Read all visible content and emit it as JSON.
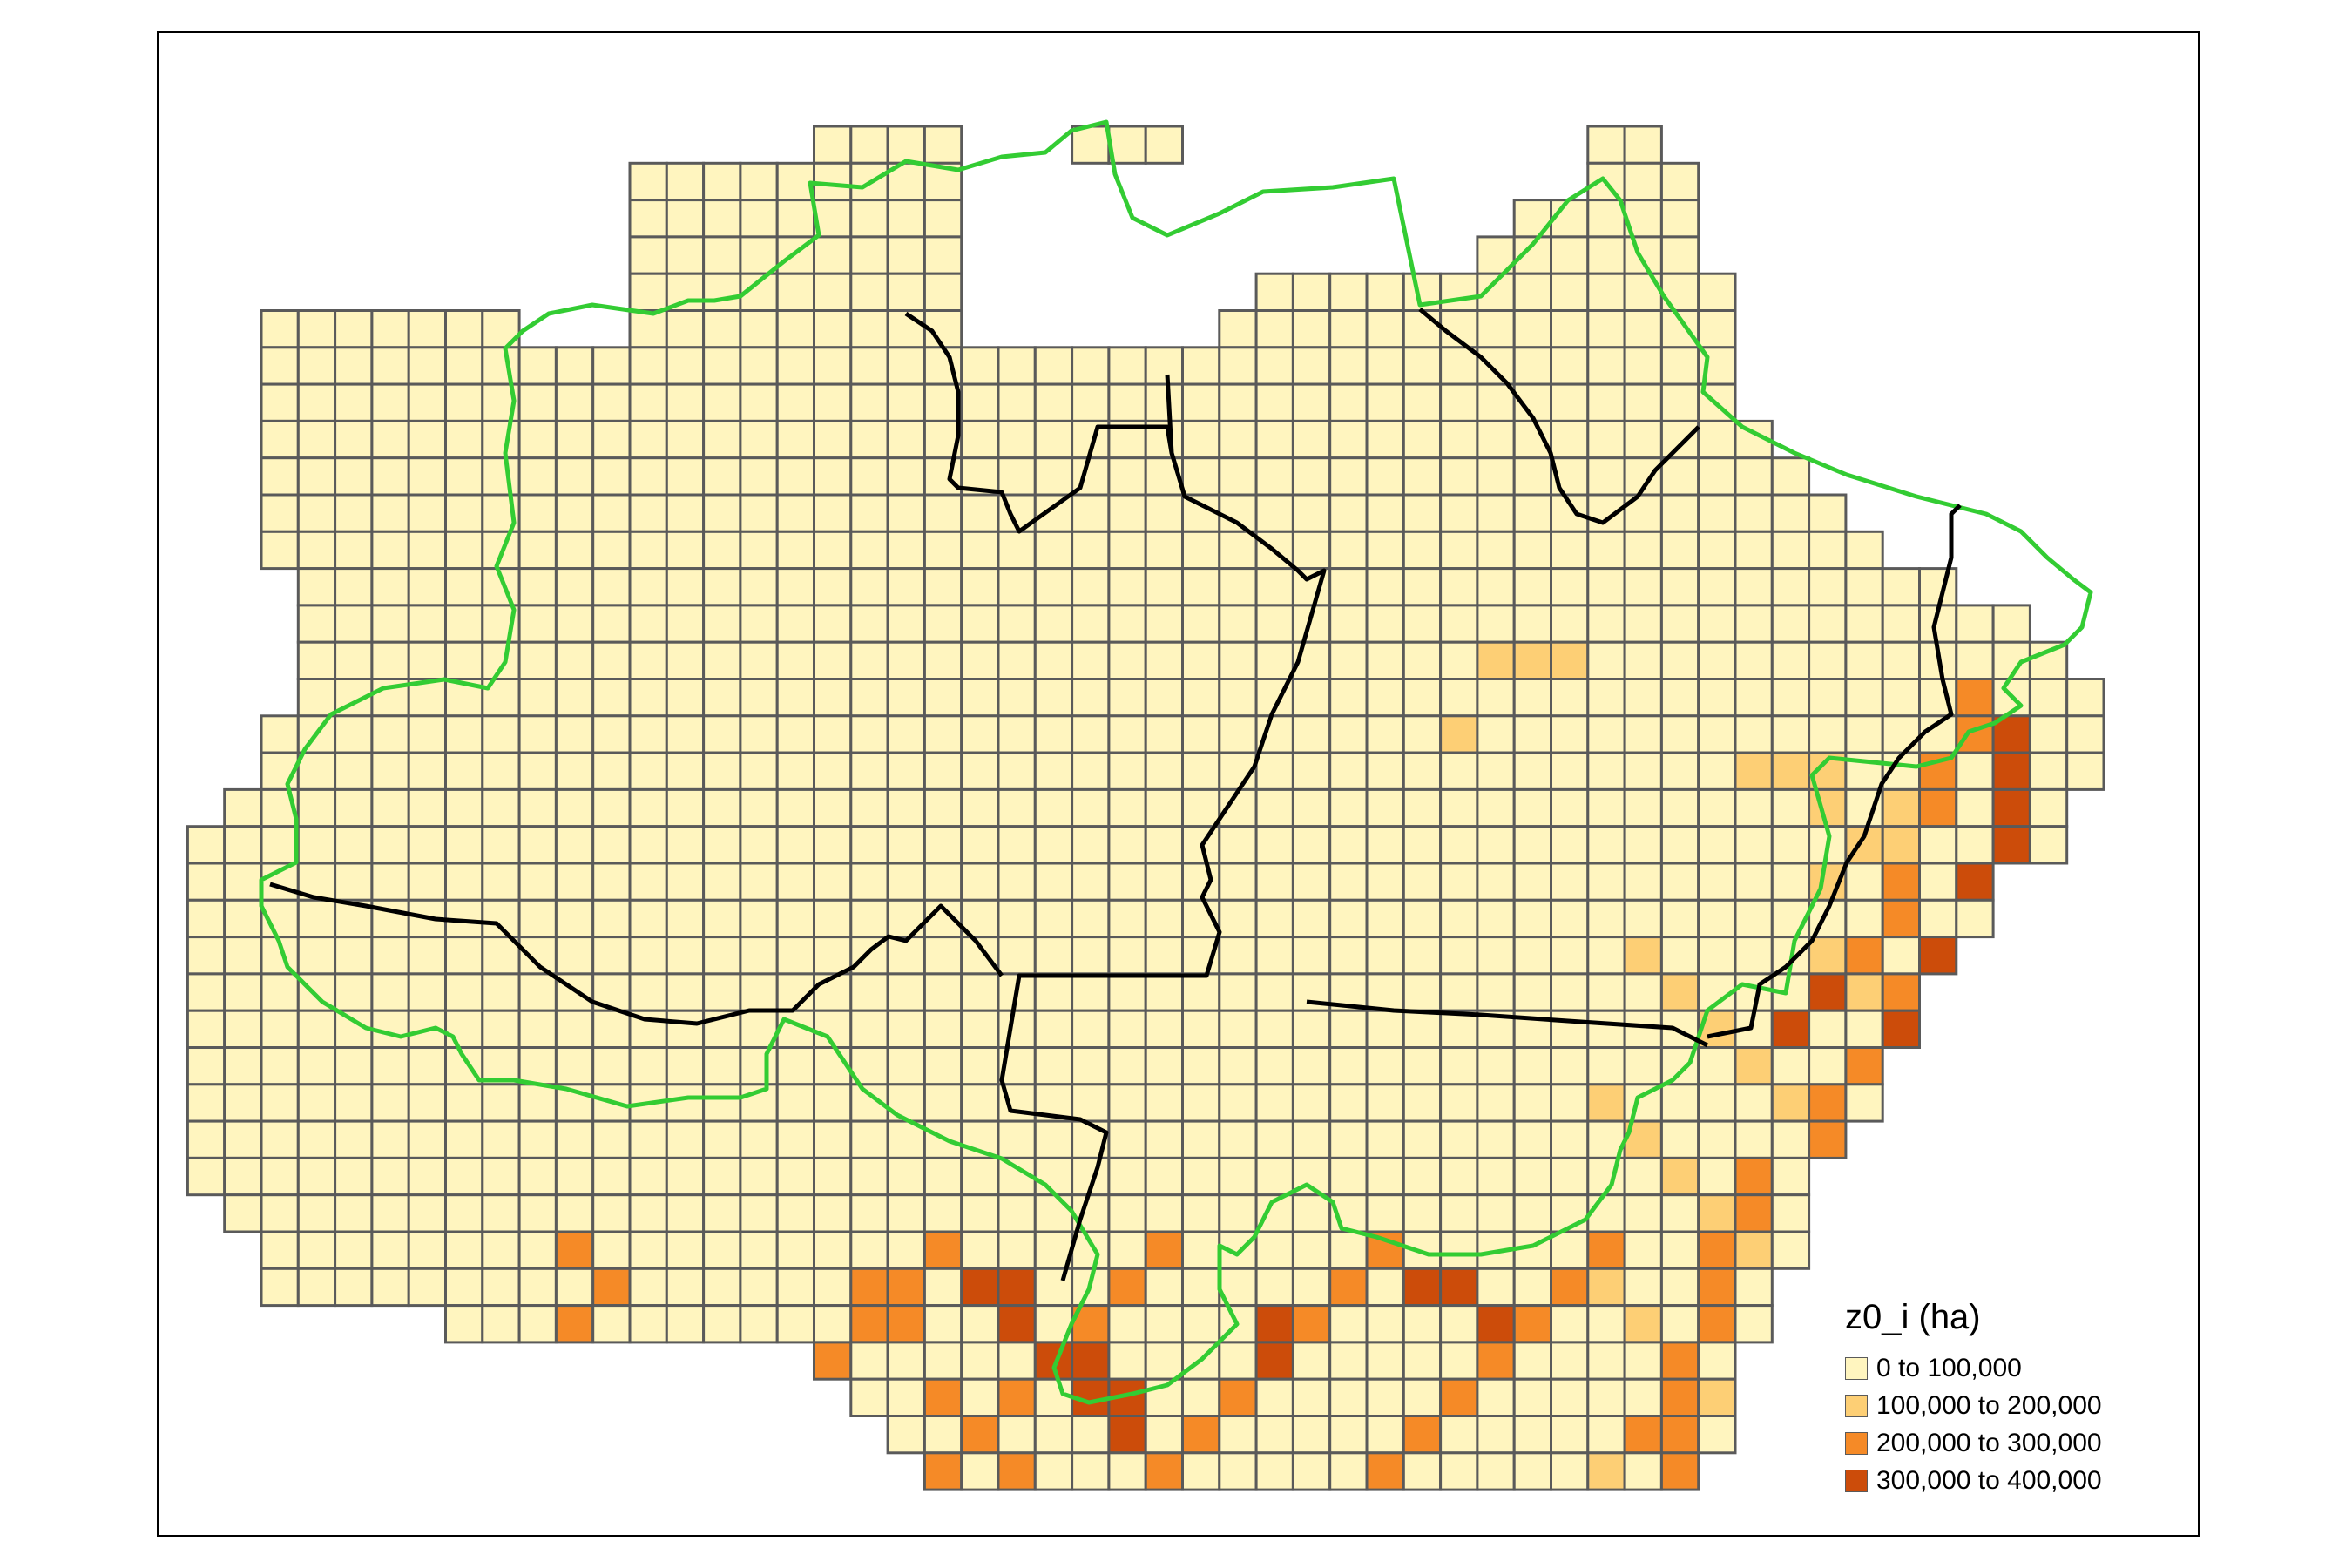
{
  "legend": {
    "title": "z0_i (ha)",
    "classes": [
      {
        "label": "0 to 100,000",
        "color": "#fff5bf"
      },
      {
        "label": "100,000 to 200,000",
        "color": "#fdcf75"
      },
      {
        "label": "200,000 to 300,000",
        "color": "#f58a27"
      },
      {
        "label": "300,000 to 400,000",
        "color": "#cc4c0a"
      }
    ]
  },
  "colors": {
    "cell_border": "#5a5a5a",
    "biome_outline": "#33cc33",
    "state_borders": "#000000"
  },
  "map_data": {
    "variable": "z0_i",
    "unit": "ha",
    "grid_summary": "regular grid of cells over the Legal Amazon region; most cells in class 0 to 100,000; higher classes concentrated in the southeast and south"
  }
}
